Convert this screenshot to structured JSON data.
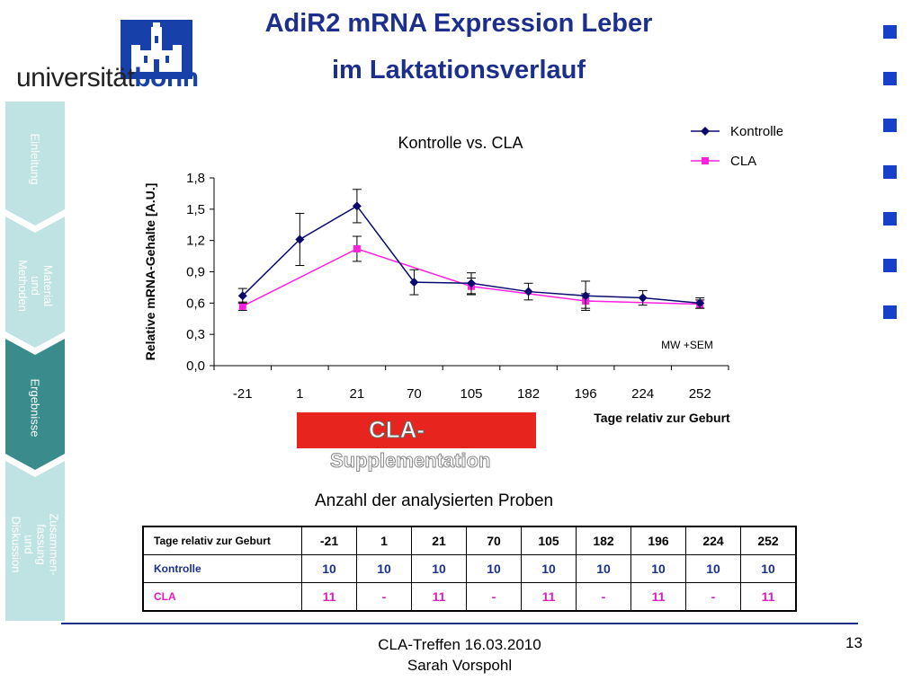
{
  "slide": {
    "title_line1": "AdiR2 mRNA Expression Leber",
    "title_line2": "im Laktationsverlauf",
    "logo": {
      "text_part1": "universität",
      "text_part2": "bonn"
    },
    "footer": {
      "line1": "CLA-Treffen 16.03.2010",
      "line2": "Sarah Vorspohl"
    },
    "page_number": "13"
  },
  "colors": {
    "title": "#1c2f8c",
    "accent_square": "#1740c9",
    "kontrolle": "#0a0a6e",
    "cla": "#ff20e0",
    "cla_box": "#e8241f",
    "nav_active": "#3a8b8b",
    "nav_inactive": "#bfe2e2"
  },
  "sidebar": {
    "items": [
      {
        "label": "Einleitung",
        "active": false
      },
      {
        "label": "Material und Methoden",
        "active": false
      },
      {
        "label": "Ergebnisse",
        "active": true
      },
      {
        "label": "Zusammen-fassung und Diskussion",
        "active": false
      }
    ]
  },
  "annotation": {
    "line1": "CLA-",
    "line2": "Supplementation",
    "sem_note": "MW +SEM"
  },
  "chart_data": {
    "type": "line",
    "title": "Kontrolle vs. CLA",
    "xlabel": "Tage relativ zur Geburt",
    "ylabel": "Relative mRNA-Gehalte [A.U.]",
    "categories": [
      "-21",
      "1",
      "21",
      "70",
      "105",
      "182",
      "196",
      "224",
      "252"
    ],
    "ylim": [
      0,
      1.8
    ],
    "yticks": [
      "0,0",
      "0,3",
      "0,6",
      "0,9",
      "1,2",
      "1,5",
      "1,8"
    ],
    "legend_position": "top-right",
    "series": [
      {
        "name": "Kontrolle",
        "marker": "diamond",
        "values": [
          0.67,
          1.21,
          1.53,
          0.8,
          0.79,
          0.71,
          0.67,
          0.65,
          0.6
        ],
        "sem": [
          0.07,
          0.25,
          0.16,
          0.12,
          0.1,
          0.08,
          0.14,
          0.07,
          0.05
        ]
      },
      {
        "name": "CLA",
        "marker": "square",
        "values": [
          0.57,
          null,
          1.12,
          null,
          0.76,
          null,
          0.62,
          null,
          0.59
        ],
        "sem": [
          0.04,
          null,
          0.12,
          null,
          0.08,
          null,
          0.07,
          null,
          0.04
        ]
      }
    ]
  },
  "samples_table": {
    "title": "Anzahl der analysierten Proben",
    "header": {
      "label": "Tage relativ zur Geburt",
      "values": [
        "-21",
        "1",
        "21",
        "70",
        "105",
        "182",
        "196",
        "224",
        "252"
      ]
    },
    "rows": [
      {
        "label": "Kontrolle",
        "values": [
          "10",
          "10",
          "10",
          "10",
          "10",
          "10",
          "10",
          "10",
          "10"
        ]
      },
      {
        "label": "CLA",
        "values": [
          "11",
          "-",
          "11",
          "-",
          "11",
          "-",
          "11",
          "-",
          "11"
        ]
      }
    ]
  }
}
